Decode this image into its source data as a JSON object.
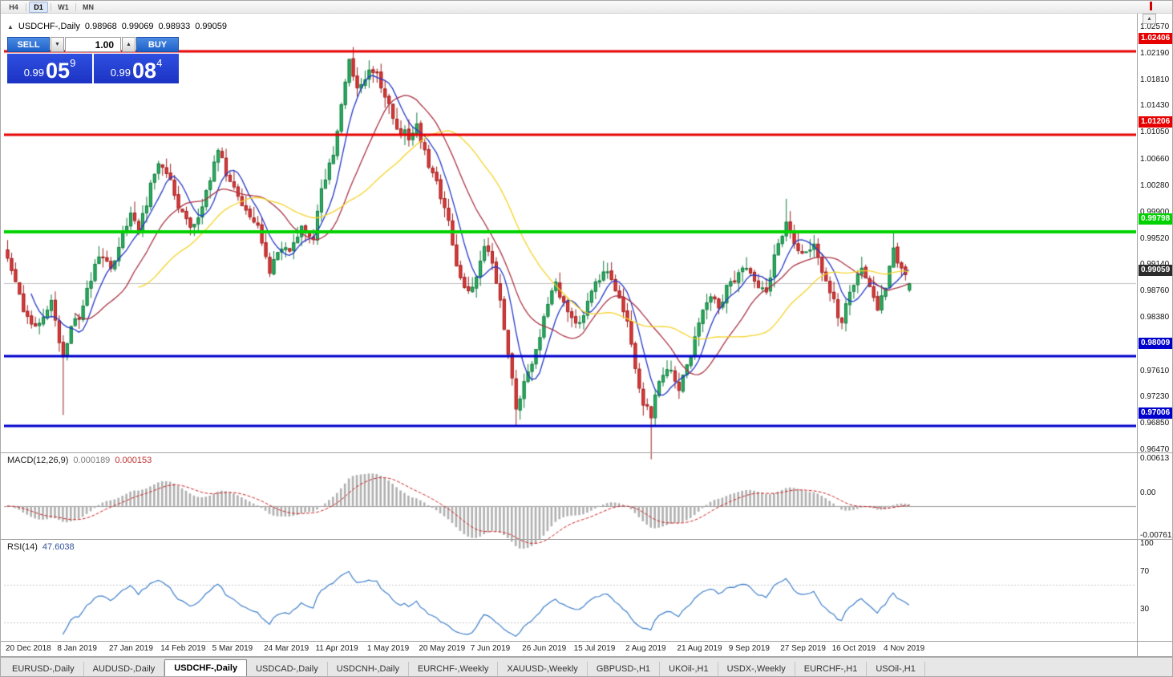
{
  "toolbar": {
    "timeframes": [
      {
        "label": "H4",
        "active": false
      },
      {
        "label": "D1",
        "active": true
      },
      {
        "label": "W1",
        "active": false
      },
      {
        "label": "MN",
        "active": false
      }
    ]
  },
  "scroll_up_icon": "▲",
  "chart": {
    "title": {
      "icon": "▲",
      "symbol": "USDCHF-,Daily",
      "open": "0.98968",
      "high": "0.99069",
      "low": "0.98933",
      "close": "0.99059"
    },
    "one_click": {
      "sell_label": "SELL",
      "buy_label": "BUY",
      "lot_value": "1.00",
      "lot_down_icon": "▼",
      "lot_up_icon": "▲",
      "sell_price": {
        "prefix": "0.99",
        "big": "05",
        "sup": "9"
      },
      "buy_price": {
        "prefix": "0.99",
        "big": "08",
        "sup": "4"
      }
    }
  },
  "macd_panel": {
    "label": "MACD(12,26,9)",
    "value_main": "0.000189",
    "value_signal": "0.000153",
    "axis_max": "0.00613",
    "axis_zero": "0.00",
    "axis_min": "-0.007612"
  },
  "rsi_panel": {
    "label": "RSI(14)",
    "value": "47.6038",
    "axis": [
      "100",
      "70",
      "30"
    ]
  },
  "tabs": [
    {
      "label": "EURUSD-,Daily",
      "active": false
    },
    {
      "label": "AUDUSD-,Daily",
      "active": false
    },
    {
      "label": "USDCHF-,Daily",
      "active": true
    },
    {
      "label": "USDCAD-,Daily",
      "active": false
    },
    {
      "label": "USDCNH-,Daily",
      "active": false
    },
    {
      "label": "EURCHF-,Weekly",
      "active": false
    },
    {
      "label": "XAUUSD-,Weekly",
      "active": false
    },
    {
      "label": "GBPUSD-,H1",
      "active": false
    },
    {
      "label": "UKOil-,H1",
      "active": false
    },
    {
      "label": "USDX-,Weekly",
      "active": false
    },
    {
      "label": "EURCHF-,H1",
      "active": false
    },
    {
      "label": "USOil-,H1",
      "active": false
    }
  ],
  "chart_data": {
    "type": "candlestick",
    "symbol": "USDCHF",
    "timeframe": "Daily",
    "ohlc_current": {
      "open": 0.98968,
      "high": 0.99069,
      "low": 0.98933,
      "close": 0.99059
    },
    "bid": 0.99059,
    "ask": 0.99084,
    "price_range": {
      "top": 1.0257,
      "bottom": 0.9647
    },
    "price_axis_ticks": [
      "1.02570",
      "1.02190",
      "1.01810",
      "1.01430",
      "1.01050",
      "1.00660",
      "1.00280",
      "0.99900",
      "0.99520",
      "0.99140",
      "0.98760",
      "0.98380",
      "0.97610",
      "0.97230",
      "0.96850",
      "0.96470"
    ],
    "horizontal_lines": [
      {
        "price": 1.02406,
        "label": "1.02406",
        "color": "#e60000",
        "width": 3
      },
      {
        "price": 1.01206,
        "label": "1.01206",
        "color": "#e60000",
        "width": 3
      },
      {
        "price": 0.99798,
        "label": "0.99798",
        "color": "#00d200",
        "width": 4
      },
      {
        "price": 0.98009,
        "label": "0.98009",
        "color": "#0000cd",
        "width": 3
      },
      {
        "price": 0.97006,
        "label": "0.97006",
        "color": "#0000cd",
        "width": 3
      }
    ],
    "current_price": {
      "price": 0.99059,
      "label": "0.99059"
    },
    "x_axis_labels": [
      {
        "index": 0,
        "label": "20 Dec 2018"
      },
      {
        "index": 13,
        "label": "8 Jan 2019"
      },
      {
        "index": 26,
        "label": "27 Jan 2019"
      },
      {
        "index": 39,
        "label": "14 Feb 2019"
      },
      {
        "index": 52,
        "label": "5 Mar 2019"
      },
      {
        "index": 65,
        "label": "24 Mar 2019"
      },
      {
        "index": 78,
        "label": "11 Apr 2019"
      },
      {
        "index": 91,
        "label": "1 May 2019"
      },
      {
        "index": 104,
        "label": "20 May 2019"
      },
      {
        "index": 117,
        "label": "7 Jun 2019"
      },
      {
        "index": 130,
        "label": "26 Jun 2019"
      },
      {
        "index": 143,
        "label": "15 Jul 2019"
      },
      {
        "index": 156,
        "label": "2 Aug 2019"
      },
      {
        "index": 169,
        "label": "21 Aug 2019"
      },
      {
        "index": 182,
        "label": "9 Sep 2019"
      },
      {
        "index": 195,
        "label": "27 Sep 2019"
      },
      {
        "index": 208,
        "label": "16 Oct 2019"
      },
      {
        "index": 221,
        "label": "4 Nov 2019"
      }
    ],
    "candles": {
      "count": 228,
      "close_anchors": [
        [
          0,
          0.9948
        ],
        [
          2,
          0.9905
        ],
        [
          5,
          0.9855
        ],
        [
          8,
          0.9845
        ],
        [
          11,
          0.9885
        ],
        [
          12,
          0.985
        ],
        [
          14,
          0.98
        ],
        [
          16,
          0.9838
        ],
        [
          19,
          0.9872
        ],
        [
          21,
          0.9915
        ],
        [
          23,
          0.9948
        ],
        [
          26,
          0.993
        ],
        [
          29,
          0.9975
        ],
        [
          31,
          1.0003
        ],
        [
          33,
          0.998
        ],
        [
          36,
          1.0045
        ],
        [
          38,
          1.0085
        ],
        [
          40,
          1.007
        ],
        [
          43,
          1.0015
        ],
        [
          46,
          0.999
        ],
        [
          48,
          0.9997
        ],
        [
          50,
          1.004
        ],
        [
          53,
          1.01
        ],
        [
          55,
          1.0065
        ],
        [
          58,
          1.003
        ],
        [
          61,
          1.0008
        ],
        [
          63,
          0.9992
        ],
        [
          66,
          0.9925
        ],
        [
          69,
          0.996
        ],
        [
          71,
          0.995
        ],
        [
          74,
          0.9988
        ],
        [
          77,
          0.9972
        ],
        [
          79,
          1.004
        ],
        [
          82,
          1.0095
        ],
        [
          84,
          1.0165
        ],
        [
          86,
          1.0225
        ],
        [
          88,
          1.019
        ],
        [
          91,
          1.0215
        ],
        [
          93,
          1.0205
        ],
        [
          96,
          1.0165
        ],
        [
          98,
          1.013
        ],
        [
          101,
          1.0118
        ],
        [
          103,
          1.0135
        ],
        [
          106,
          1.008
        ],
        [
          108,
          1.005
        ],
        [
          111,
          1.0
        ],
        [
          113,
          0.993
        ],
        [
          116,
          0.9895
        ],
        [
          118,
          0.9915
        ],
        [
          120,
          0.9965
        ],
        [
          122,
          0.994
        ],
        [
          124,
          0.988
        ],
        [
          126,
          0.98
        ],
        [
          128,
          0.973
        ],
        [
          130,
          0.9762
        ],
        [
          133,
          0.9805
        ],
        [
          135,
          0.986
        ],
        [
          138,
          0.9905
        ],
        [
          140,
          0.9875
        ],
        [
          143,
          0.985
        ],
        [
          145,
          0.9862
        ],
        [
          148,
          0.9905
        ],
        [
          151,
          0.9928
        ],
        [
          153,
          0.9902
        ],
        [
          156,
          0.985
        ],
        [
          158,
          0.979
        ],
        [
          160,
          0.9732
        ],
        [
          162,
          0.9718
        ],
        [
          164,
          0.9768
        ],
        [
          167,
          0.978
        ],
        [
          169,
          0.9752
        ],
        [
          172,
          0.98
        ],
        [
          174,
          0.9848
        ],
        [
          177,
          0.9888
        ],
        [
          179,
          0.9868
        ],
        [
          181,
          0.9898
        ],
        [
          184,
          0.992
        ],
        [
          186,
          0.9932
        ],
        [
          189,
          0.9903
        ],
        [
          191,
          0.989
        ],
        [
          193,
          0.9945
        ],
        [
          196,
          0.9995
        ],
        [
          198,
          0.9962
        ],
        [
          200,
          0.995
        ],
        [
          203,
          0.9962
        ],
        [
          205,
          0.9928
        ],
        [
          208,
          0.988
        ],
        [
          210,
          0.9845
        ],
        [
          212,
          0.9898
        ],
        [
          215,
          0.993
        ],
        [
          217,
          0.99
        ],
        [
          219,
          0.9872
        ],
        [
          221,
          0.9905
        ],
        [
          223,
          0.9952
        ],
        [
          225,
          0.9928
        ],
        [
          227,
          0.99059
        ]
      ],
      "wick_extremes": [
        {
          "index": 14,
          "low": 0.9716
        },
        {
          "index": 87,
          "high": 1.0247
        },
        {
          "index": 128,
          "low": 0.97
        },
        {
          "index": 162,
          "low": 0.9652
        },
        {
          "index": 196,
          "high": 1.0028
        },
        {
          "index": 223,
          "high": 0.9979
        }
      ]
    },
    "moving_averages": [
      {
        "period": 7,
        "color": "#2238c8"
      },
      {
        "period": 18,
        "color": "#aa3344"
      },
      {
        "period": 34,
        "color": "#f5d327"
      }
    ],
    "colors": {
      "up_fill": "#2eb165",
      "up_stroke": "#117a3d",
      "down_fill": "#e23b3b",
      "down_stroke": "#9c1f1f",
      "current_price_line": "#c0c0c0",
      "macd_bar": "#b0b0b0",
      "macd_zero": "#9a9a9a",
      "macd_signal": "#cc2222",
      "rsi_line": "#3f7fca",
      "rsi_level": "#c8c8c8"
    },
    "indicators": {
      "macd": {
        "fast": 12,
        "slow": 26,
        "signal": 9,
        "last_main": 0.000189,
        "last_signal": 0.000153,
        "scale_max": 0.00613,
        "scale_min": -0.007612
      },
      "rsi": {
        "period": 14,
        "last": 47.6038,
        "levels": [
          70,
          30
        ]
      }
    }
  }
}
